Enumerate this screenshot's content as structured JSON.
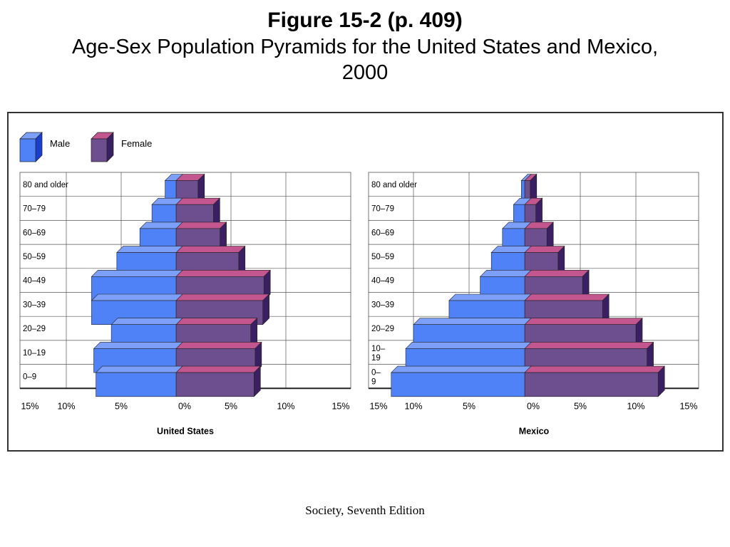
{
  "title": {
    "line1": "Figure 15-2  (p. 409)",
    "line2": "Age-Sex Population Pyramids for the United States and Mexico,",
    "line3": "2000"
  },
  "footer": "Society, Seventh Edition",
  "colors": {
    "male_front": "#4f82f7",
    "male_top": "#7c9ff9",
    "male_side": "#1a3fd0",
    "female_front": "#6d4f8f",
    "female_top": "#c3568e",
    "female_side": "#3b1f63"
  },
  "legend": {
    "male": "Male",
    "female": "Female"
  },
  "chart_data": [
    {
      "type": "bar",
      "title": "United States",
      "orientation": "horizontal-pyramid",
      "categories": [
        "80 and older",
        "70–79",
        "60–69",
        "50–59",
        "40–49",
        "30–39",
        "20–29",
        "10–19",
        "0–9"
      ],
      "category_labels": [
        [
          "80 and older"
        ],
        [
          "70–79"
        ],
        [
          "60–69"
        ],
        [
          "50–59"
        ],
        [
          "40–49"
        ],
        [
          "30–39"
        ],
        [
          "20–29"
        ],
        [
          "10–19"
        ],
        [
          "0–9"
        ]
      ],
      "series": [
        {
          "name": "Male",
          "values": [
            1.0,
            2.2,
            3.3,
            5.4,
            7.7,
            7.7,
            5.9,
            7.5,
            7.3
          ]
        },
        {
          "name": "Female",
          "values": [
            2.0,
            3.4,
            4.0,
            5.7,
            8.0,
            7.9,
            6.8,
            7.2,
            7.1
          ]
        }
      ],
      "xlim": [
        -15,
        15
      ],
      "tick_labels": [
        "15%",
        "10%",
        "5%",
        "0%",
        "5%",
        "10%",
        "15%"
      ],
      "grid": true
    },
    {
      "type": "bar",
      "title": "Mexico",
      "orientation": "horizontal-pyramid",
      "categories": [
        "80 and older",
        "70–79",
        "60–69",
        "50–59",
        "40–49",
        "30–39",
        "20–29",
        "10–19",
        "0–9"
      ],
      "category_labels": [
        [
          "80 and older"
        ],
        [
          "70–79"
        ],
        [
          "60–69"
        ],
        [
          "50–59"
        ],
        [
          "40–49"
        ],
        [
          "30–39"
        ],
        [
          "20–29"
        ],
        [
          "10–",
          "19"
        ],
        [
          "0–",
          "9"
        ]
      ],
      "series": [
        {
          "name": "Male",
          "values": [
            0.3,
            1.0,
            2.0,
            3.0,
            4.0,
            6.8,
            10.0,
            10.7,
            12.0
          ]
        },
        {
          "name": "Female",
          "values": [
            0.5,
            1.0,
            2.0,
            3.0,
            5.2,
            7.0,
            10.0,
            11.0,
            12.0
          ]
        }
      ],
      "xlim": [
        -15,
        15
      ],
      "tick_labels": [
        "15%",
        "10%",
        "5%",
        "0%",
        "5%",
        "10%",
        "15%"
      ],
      "grid": true
    }
  ]
}
